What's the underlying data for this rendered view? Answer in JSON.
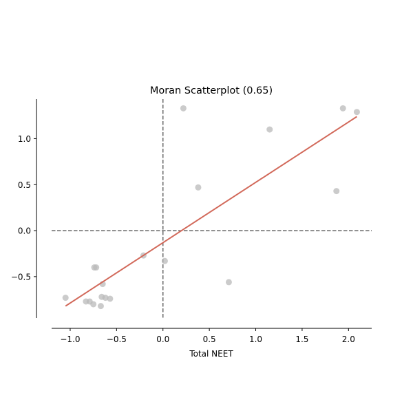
{
  "chart_data": {
    "type": "scatter",
    "title": "Moran Scatterplot (0.65)",
    "xlabel": "Total NEET",
    "ylabel": "",
    "xlim": [
      -1.2,
      2.25
    ],
    "ylim": [
      -0.95,
      1.43
    ],
    "xticks": [
      -1.0,
      -0.5,
      0.0,
      0.5,
      1.0,
      1.5,
      2.0
    ],
    "xtick_labels": [
      "−1.0",
      "−0.5",
      "0.0",
      "0.5",
      "1.0",
      "1.5",
      "2.0"
    ],
    "yticks": [
      -0.5,
      0.0,
      0.5,
      1.0
    ],
    "ytick_labels": [
      "−0.5",
      "0.0",
      "0.5",
      "1.0"
    ],
    "grid": false,
    "reference_lines": {
      "x": 0,
      "y": 0
    },
    "points": [
      {
        "x": -1.05,
        "y": -0.73
      },
      {
        "x": -0.83,
        "y": -0.77
      },
      {
        "x": -0.79,
        "y": -0.77
      },
      {
        "x": -0.75,
        "y": -0.8
      },
      {
        "x": -0.74,
        "y": -0.4
      },
      {
        "x": -0.72,
        "y": -0.4
      },
      {
        "x": -0.67,
        "y": -0.82
      },
      {
        "x": -0.66,
        "y": -0.72
      },
      {
        "x": -0.65,
        "y": -0.58
      },
      {
        "x": -0.62,
        "y": -0.73
      },
      {
        "x": -0.57,
        "y": -0.74
      },
      {
        "x": -0.21,
        "y": -0.27
      },
      {
        "x": 0.02,
        "y": -0.33
      },
      {
        "x": 0.22,
        "y": 1.33
      },
      {
        "x": 0.38,
        "y": 0.47
      },
      {
        "x": 0.71,
        "y": -0.56
      },
      {
        "x": 1.15,
        "y": 1.1
      },
      {
        "x": 1.87,
        "y": 0.43
      },
      {
        "x": 1.94,
        "y": 1.33
      },
      {
        "x": 2.09,
        "y": 1.29
      }
    ],
    "fit_line": {
      "x": [
        -1.05,
        2.09
      ],
      "y": [
        -0.82,
        1.24
      ]
    },
    "colors": {
      "points": "#bababa",
      "fit": "#d2695a",
      "reference": "#666666"
    }
  }
}
